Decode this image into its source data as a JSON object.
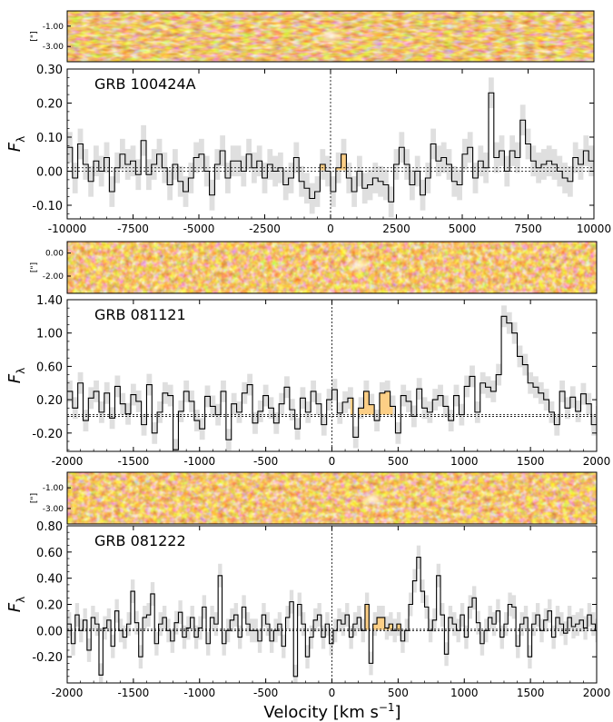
{
  "figure": {
    "xlabel": "Velocity [km s$^{-1}$]",
    "xlabel_main": "Velocity [km s",
    "xlabel_sup": "−1",
    "xlabel_end": "]",
    "ylabel": "Fλ",
    "ylabel_main": "F",
    "ylabel_sub": "λ",
    "image_ylabel": "[\"]"
  },
  "colors": {
    "flux_line": "#000000",
    "error_band": "#d9d9d9",
    "emission_fill": "#fccf86",
    "emission_edge": "#e8a848",
    "image_dark": "#7a2a00",
    "image_mid": "#c4630f",
    "image_bright": "#fff2d8"
  },
  "chart_data": [
    {
      "type": "line",
      "title": "GRB 100424A",
      "xlim": [
        -10000,
        10000
      ],
      "ylim": [
        -0.14,
        0.3
      ],
      "xticks": [
        -10000,
        -7500,
        -5000,
        -2500,
        0,
        2500,
        5000,
        7500,
        10000
      ],
      "yticks": [
        -0.1,
        0.0,
        0.1,
        0.2,
        0.3
      ],
      "xtick_labels": [
        "-10000",
        "-7500",
        "-5000",
        "-2500",
        "0",
        "2500",
        "5000",
        "7500",
        "10000"
      ],
      "ytick_labels": [
        "-0.10",
        "0.00",
        "0.10",
        "0.20",
        "0.30"
      ],
      "image_yticks": [
        -1.0,
        -3.0
      ],
      "image_ytick_labels": [
        "-1.00",
        "-3.00"
      ],
      "image_yrange": [
        0.5,
        -4.5
      ],
      "emission_range": [
        -900,
        700
      ],
      "continuum": 0.003,
      "zero_lines": [
        0.0,
        0.01
      ],
      "step": 200,
      "start": -10000,
      "flux": [
        0.07,
        -0.02,
        0.08,
        0.02,
        -0.03,
        0.03,
        0.0,
        0.04,
        -0.06,
        0.01,
        0.05,
        0.02,
        0.03,
        -0.01,
        0.09,
        -0.01,
        0.02,
        0.05,
        0.01,
        -0.04,
        0.02,
        -0.03,
        -0.06,
        -0.02,
        0.04,
        0.05,
        0.0,
        -0.07,
        0.02,
        0.06,
        -0.02,
        0.03,
        0.03,
        0.0,
        0.05,
        0.01,
        0.03,
        -0.02,
        0.02,
        0.0,
        0.01,
        -0.04,
        -0.02,
        0.04,
        -0.03,
        -0.05,
        -0.08,
        -0.06,
        0.02,
        0.0,
        -0.06,
        0.01,
        0.05,
        -0.02,
        -0.06,
        0.0,
        -0.05,
        -0.04,
        -0.02,
        -0.03,
        -0.04,
        -0.09,
        0.02,
        0.07,
        0.02,
        -0.04,
        0.0,
        -0.07,
        -0.02,
        0.08,
        0.03,
        0.04,
        0.02,
        -0.03,
        -0.04,
        0.05,
        0.07,
        -0.02,
        0.03,
        0.01,
        0.23,
        0.04,
        0.06,
        0.0,
        0.06,
        0.04,
        0.15,
        0.08,
        0.03,
        0.01,
        0.02,
        0.03,
        0.02,
        0.0,
        -0.02,
        -0.03,
        0.04,
        0.02,
        0.06,
        0.03,
        0.0,
        -0.04,
        0.05,
        -0.02,
        0.06,
        -0.01,
        0.07,
        0.03,
        0.0,
        -0.03,
        0.0,
        -0.04,
        0.02,
        0.09,
        0.01,
        0.05,
        0.0,
        0.01,
        0.05,
        -0.01,
        0.03,
        0.07,
        0.04,
        0.0,
        0.11,
        -0.01,
        0.03,
        0.02,
        0.05,
        0.07,
        0.03,
        0.06,
        0.06,
        0.04,
        -0.03,
        -0.01,
        0.03,
        0.0,
        -0.02,
        0.07,
        0.03,
        -0.01,
        0.05,
        0.02,
        0.02,
        0.04,
        0.06,
        0.01,
        0.01,
        -0.02,
        -0.06,
        0.0,
        0.04,
        0.07,
        0.05,
        0.04,
        0.1,
        0.09,
        0.03,
        0.04,
        0.07,
        0.05,
        0.03,
        0.02,
        0.04,
        0.08,
        0.0,
        -0.01,
        -0.03,
        0.05,
        0.08,
        0.03,
        0.02,
        0.02,
        0.05,
        0.0,
        0.04,
        0.02,
        0.03,
        -0.01,
        0.0,
        0.04,
        -0.02,
        0.02,
        0.02,
        0.02,
        0.03,
        0.01,
        0.06,
        0.0,
        0.07,
        0.02,
        0.03,
        0.01,
        0.05,
        0.04,
        0.03,
        -0.01,
        0.02,
        0.01,
        0.02
      ],
      "error": 0.045
    },
    {
      "type": "line",
      "title": "GRB 081121",
      "xlim": [
        -2000,
        2000
      ],
      "ylim": [
        -0.42,
        1.4
      ],
      "xticks": [
        -2000,
        -1500,
        -1000,
        -500,
        0,
        500,
        1000,
        1500,
        2000
      ],
      "yticks": [
        -0.2,
        0.2,
        0.6,
        1.0,
        1.4
      ],
      "xtick_labels": [
        "-2000",
        "-1500",
        "-1000",
        "-500",
        "0",
        "500",
        "1000",
        "1500",
        "2000"
      ],
      "ytick_labels": [
        "-0.20",
        "0.20",
        "0.60",
        "1.00",
        "1.40"
      ],
      "image_yticks": [
        0.0,
        -2.0
      ],
      "image_ytick_labels": [
        "0.00",
        "-2.00"
      ],
      "image_yrange": [
        1.0,
        -3.5
      ],
      "emission_range": [
        140,
        460
      ],
      "continuum": 0.02,
      "zero_lines": [
        0.0,
        0.02
      ],
      "step": 40,
      "start": -2000,
      "flux": [
        0.3,
        0.1,
        0.4,
        -0.05,
        0.22,
        0.3,
        0.05,
        0.28,
        -0.02,
        0.36,
        0.15,
        0.03,
        0.26,
        0.18,
        -0.1,
        0.38,
        -0.2,
        0.05,
        0.28,
        0.25,
        -0.4,
        0.06,
        0.3,
        0.18,
        -0.05,
        -0.15,
        0.24,
        0.12,
        0.02,
        0.3,
        -0.28,
        0.15,
        0.05,
        0.28,
        0.38,
        -0.08,
        0.06,
        0.25,
        0.1,
        -0.08,
        0.15,
        0.35,
        0.08,
        -0.15,
        0.22,
        0.05,
        0.3,
        0.15,
        -0.1,
        0.2,
        0.32,
        0.04,
        0.17,
        0.22,
        -0.25,
        0.1,
        0.3,
        0.14,
        -0.05,
        0.28,
        0.3,
        0.12,
        -0.2,
        0.25,
        0.18,
        0.0,
        0.33,
        0.1,
        0.05,
        0.2,
        0.25,
        0.12,
        -0.05,
        0.25,
        0.02,
        0.36,
        0.48,
        0.05,
        0.4,
        0.35,
        0.3,
        0.5,
        1.2,
        1.12,
        1.0,
        0.72,
        0.62,
        0.4,
        0.35,
        0.28,
        0.2,
        0.05,
        -0.1,
        0.3,
        0.1,
        0.23,
        0.06,
        0.27,
        0.15,
        -0.1,
        0.12,
        0.32,
        0.18,
        0.02,
        0.26,
        0.2,
        0.12,
        0.3,
        0.05,
        0.22,
        0.15,
        0.28,
        0.08,
        0.02,
        0.17,
        0.22,
        -0.05,
        0.22,
        0.12,
        0.3,
        0.18,
        0.06,
        0.2,
        0.25,
        0.1,
        -0.05,
        0.18,
        0.02,
        0.26,
        0.2,
        0.08,
        0.15,
        0.2,
        0.08,
        0.26,
        0.14,
        0.12,
        0.05,
        0.2,
        0.18,
        -0.1,
        0.25,
        0.08,
        0.02,
        0.15,
        0.2,
        0.1,
        0.05,
        0.2,
        0.06,
        0.0,
        0.12,
        0.15,
        0.1,
        0.17,
        0.12,
        0.2,
        0.05,
        0.08,
        0.12,
        0.15,
        0.08,
        0.12,
        0.1,
        0.15,
        0.12,
        0.08,
        0.15,
        0.12,
        0.2
      ],
      "error": 0.13
    },
    {
      "type": "line",
      "title": "GRB 081222",
      "xlim": [
        -2000,
        2000
      ],
      "ylim": [
        -0.4,
        0.8
      ],
      "xticks": [
        -2000,
        -1500,
        -1000,
        -500,
        0,
        500,
        1000,
        1500,
        2000
      ],
      "yticks": [
        -0.2,
        0.0,
        0.2,
        0.4,
        0.6,
        0.8
      ],
      "xtick_labels": [
        "-2000",
        "-1500",
        "-1000",
        "-500",
        "0",
        "500",
        "1000",
        "1500",
        "2000"
      ],
      "ytick_labels": [
        "-0.20",
        "0.00",
        "0.20",
        "0.40",
        "0.60",
        "0.80"
      ],
      "image_yticks": [
        -1.0,
        -3.0
      ],
      "image_ytick_labels": [
        "-1.00",
        "-3.00"
      ],
      "image_yrange": [
        0.5,
        -4.5
      ],
      "emission_range": [
        230,
        560
      ],
      "continuum": 0.005,
      "zero_lines": [
        0.0,
        0.01
      ],
      "step": 30,
      "start": -2000,
      "flux": [
        0.05,
        -0.1,
        0.12,
        0.0,
        0.08,
        -0.15,
        0.1,
        0.05,
        -0.34,
        0.02,
        0.08,
        -0.12,
        0.15,
        0.0,
        -0.05,
        0.05,
        0.3,
        0.06,
        -0.2,
        0.1,
        0.12,
        0.28,
        -0.1,
        0.05,
        0.1,
        0.0,
        -0.08,
        0.06,
        0.14,
        -0.05,
        0.02,
        0.1,
        -0.05,
        0.02,
        0.18,
        -0.1,
        0.1,
        0.05,
        0.42,
        -0.1,
        0.0,
        0.08,
        0.12,
        -0.05,
        0.18,
        0.05,
        0.0,
        0.0,
        -0.08,
        0.12,
        0.05,
        -0.08,
        0.0,
        0.05,
        -0.12,
        0.1,
        0.22,
        -0.35,
        0.2,
        0.05,
        -0.2,
        -0.05,
        0.08,
        0.12,
        -0.05,
        0.05,
        -0.1,
        0.0,
        0.08,
        0.05,
        0.12,
        -0.05,
        0.05,
        0.1,
        0.0,
        0.2,
        -0.25,
        0.05,
        0.1,
        0.1,
        0.02,
        0.05,
        0.0,
        0.05,
        -0.08,
        0.0,
        0.2,
        0.38,
        0.56,
        0.3,
        0.18,
        0.0,
        0.08,
        0.42,
        0.12,
        -0.18,
        0.1,
        0.05,
        0.0,
        0.12,
        -0.05,
        0.18,
        0.25,
        0.06,
        -0.1,
        0.0,
        0.1,
        0.05,
        0.15,
        -0.05,
        0.05,
        0.2,
        0.18,
        -0.12,
        0.05,
        0.1,
        -0.2,
        0.05,
        0.12,
        0.0,
        0.08,
        0.15,
        -0.05,
        0.1,
        0.05,
        -0.02,
        0.1,
        0.03,
        0.05,
        0.08,
        0.02,
        0.12,
        0.05,
        0.0,
        0.06,
        0.04,
        0.1,
        0.02,
        0.15,
        0.05,
        0.0,
        0.05,
        0.0,
        0.12,
        0.04
      ],
      "error": 0.09
    }
  ]
}
